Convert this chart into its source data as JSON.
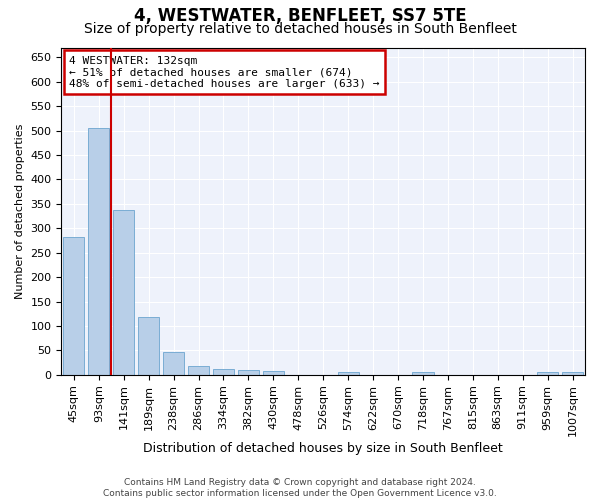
{
  "title": "4, WESTWATER, BENFLEET, SS7 5TE",
  "subtitle": "Size of property relative to detached houses in South Benfleet",
  "xlabel": "Distribution of detached houses by size in South Benfleet",
  "ylabel": "Number of detached properties",
  "categories": [
    "45sqm",
    "93sqm",
    "141sqm",
    "189sqm",
    "238sqm",
    "286sqm",
    "334sqm",
    "382sqm",
    "430sqm",
    "478sqm",
    "526sqm",
    "574sqm",
    "622sqm",
    "670sqm",
    "718sqm",
    "767sqm",
    "815sqm",
    "863sqm",
    "911sqm",
    "959sqm",
    "1007sqm"
  ],
  "values": [
    283,
    505,
    338,
    119,
    47,
    19,
    12,
    9,
    7,
    0,
    0,
    5,
    0,
    0,
    5,
    0,
    0,
    0,
    0,
    5,
    5
  ],
  "bar_color": "#b8cfe8",
  "bar_edge_color": "#7aadd4",
  "vline_index": 1.5,
  "vline_color": "#cc0000",
  "annotation_line1": "4 WESTWATER: 132sqm",
  "annotation_line2": "← 51% of detached houses are smaller (674)",
  "annotation_line3": "48% of semi-detached houses are larger (633) →",
  "ann_box_color": "#cc0000",
  "ylim_max": 670,
  "yticks": [
    0,
    50,
    100,
    150,
    200,
    250,
    300,
    350,
    400,
    450,
    500,
    550,
    600,
    650
  ],
  "footer_line1": "Contains HM Land Registry data © Crown copyright and database right 2024.",
  "footer_line2": "Contains public sector information licensed under the Open Government Licence v3.0.",
  "bg_color": "#eef2fb",
  "grid_color": "#ffffff",
  "title_fontsize": 12,
  "subtitle_fontsize": 10,
  "xlabel_fontsize": 9,
  "ylabel_fontsize": 8,
  "tick_fontsize": 8,
  "ann_fontsize": 8,
  "footer_fontsize": 6.5
}
